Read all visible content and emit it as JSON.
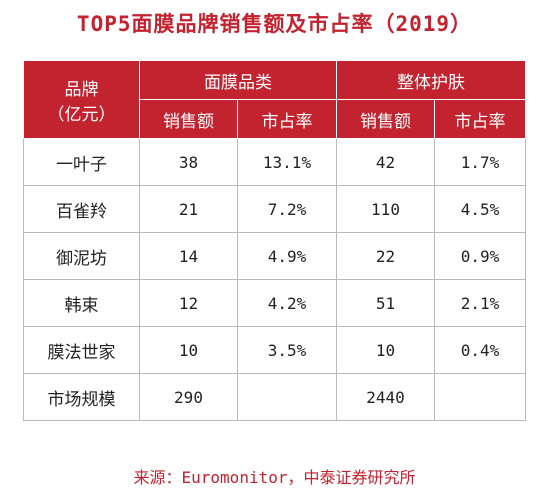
{
  "chart_data": {
    "type": "table",
    "title": "TOP5面膜品牌销售额及市占率（2019）",
    "header": {
      "brand": "品牌\n（亿元）",
      "group1": "面膜品类",
      "group2": "整体护肤",
      "sub": [
        "销售额",
        "市占率",
        "销售额",
        "市占率"
      ]
    },
    "rows": [
      {
        "brand": "一叶子",
        "mask_sales": "38",
        "mask_share": "13.1%",
        "skin_sales": "42",
        "skin_share": "1.7%"
      },
      {
        "brand": "百雀羚",
        "mask_sales": "21",
        "mask_share": "7.2%",
        "skin_sales": "110",
        "skin_share": "4.5%"
      },
      {
        "brand": "御泥坊",
        "mask_sales": "14",
        "mask_share": "4.9%",
        "skin_sales": "22",
        "skin_share": "0.9%"
      },
      {
        "brand": "韩束",
        "mask_sales": "12",
        "mask_share": "4.2%",
        "skin_sales": "51",
        "skin_share": "2.1%"
      },
      {
        "brand": "膜法世家",
        "mask_sales": "10",
        "mask_share": "3.5%",
        "skin_sales": "10",
        "skin_share": "0.4%"
      },
      {
        "brand": "市场规模",
        "mask_sales": "290",
        "mask_share": "",
        "skin_sales": "2440",
        "skin_share": ""
      }
    ],
    "source": "来源：Euromonitor，中泰证券研究所"
  }
}
